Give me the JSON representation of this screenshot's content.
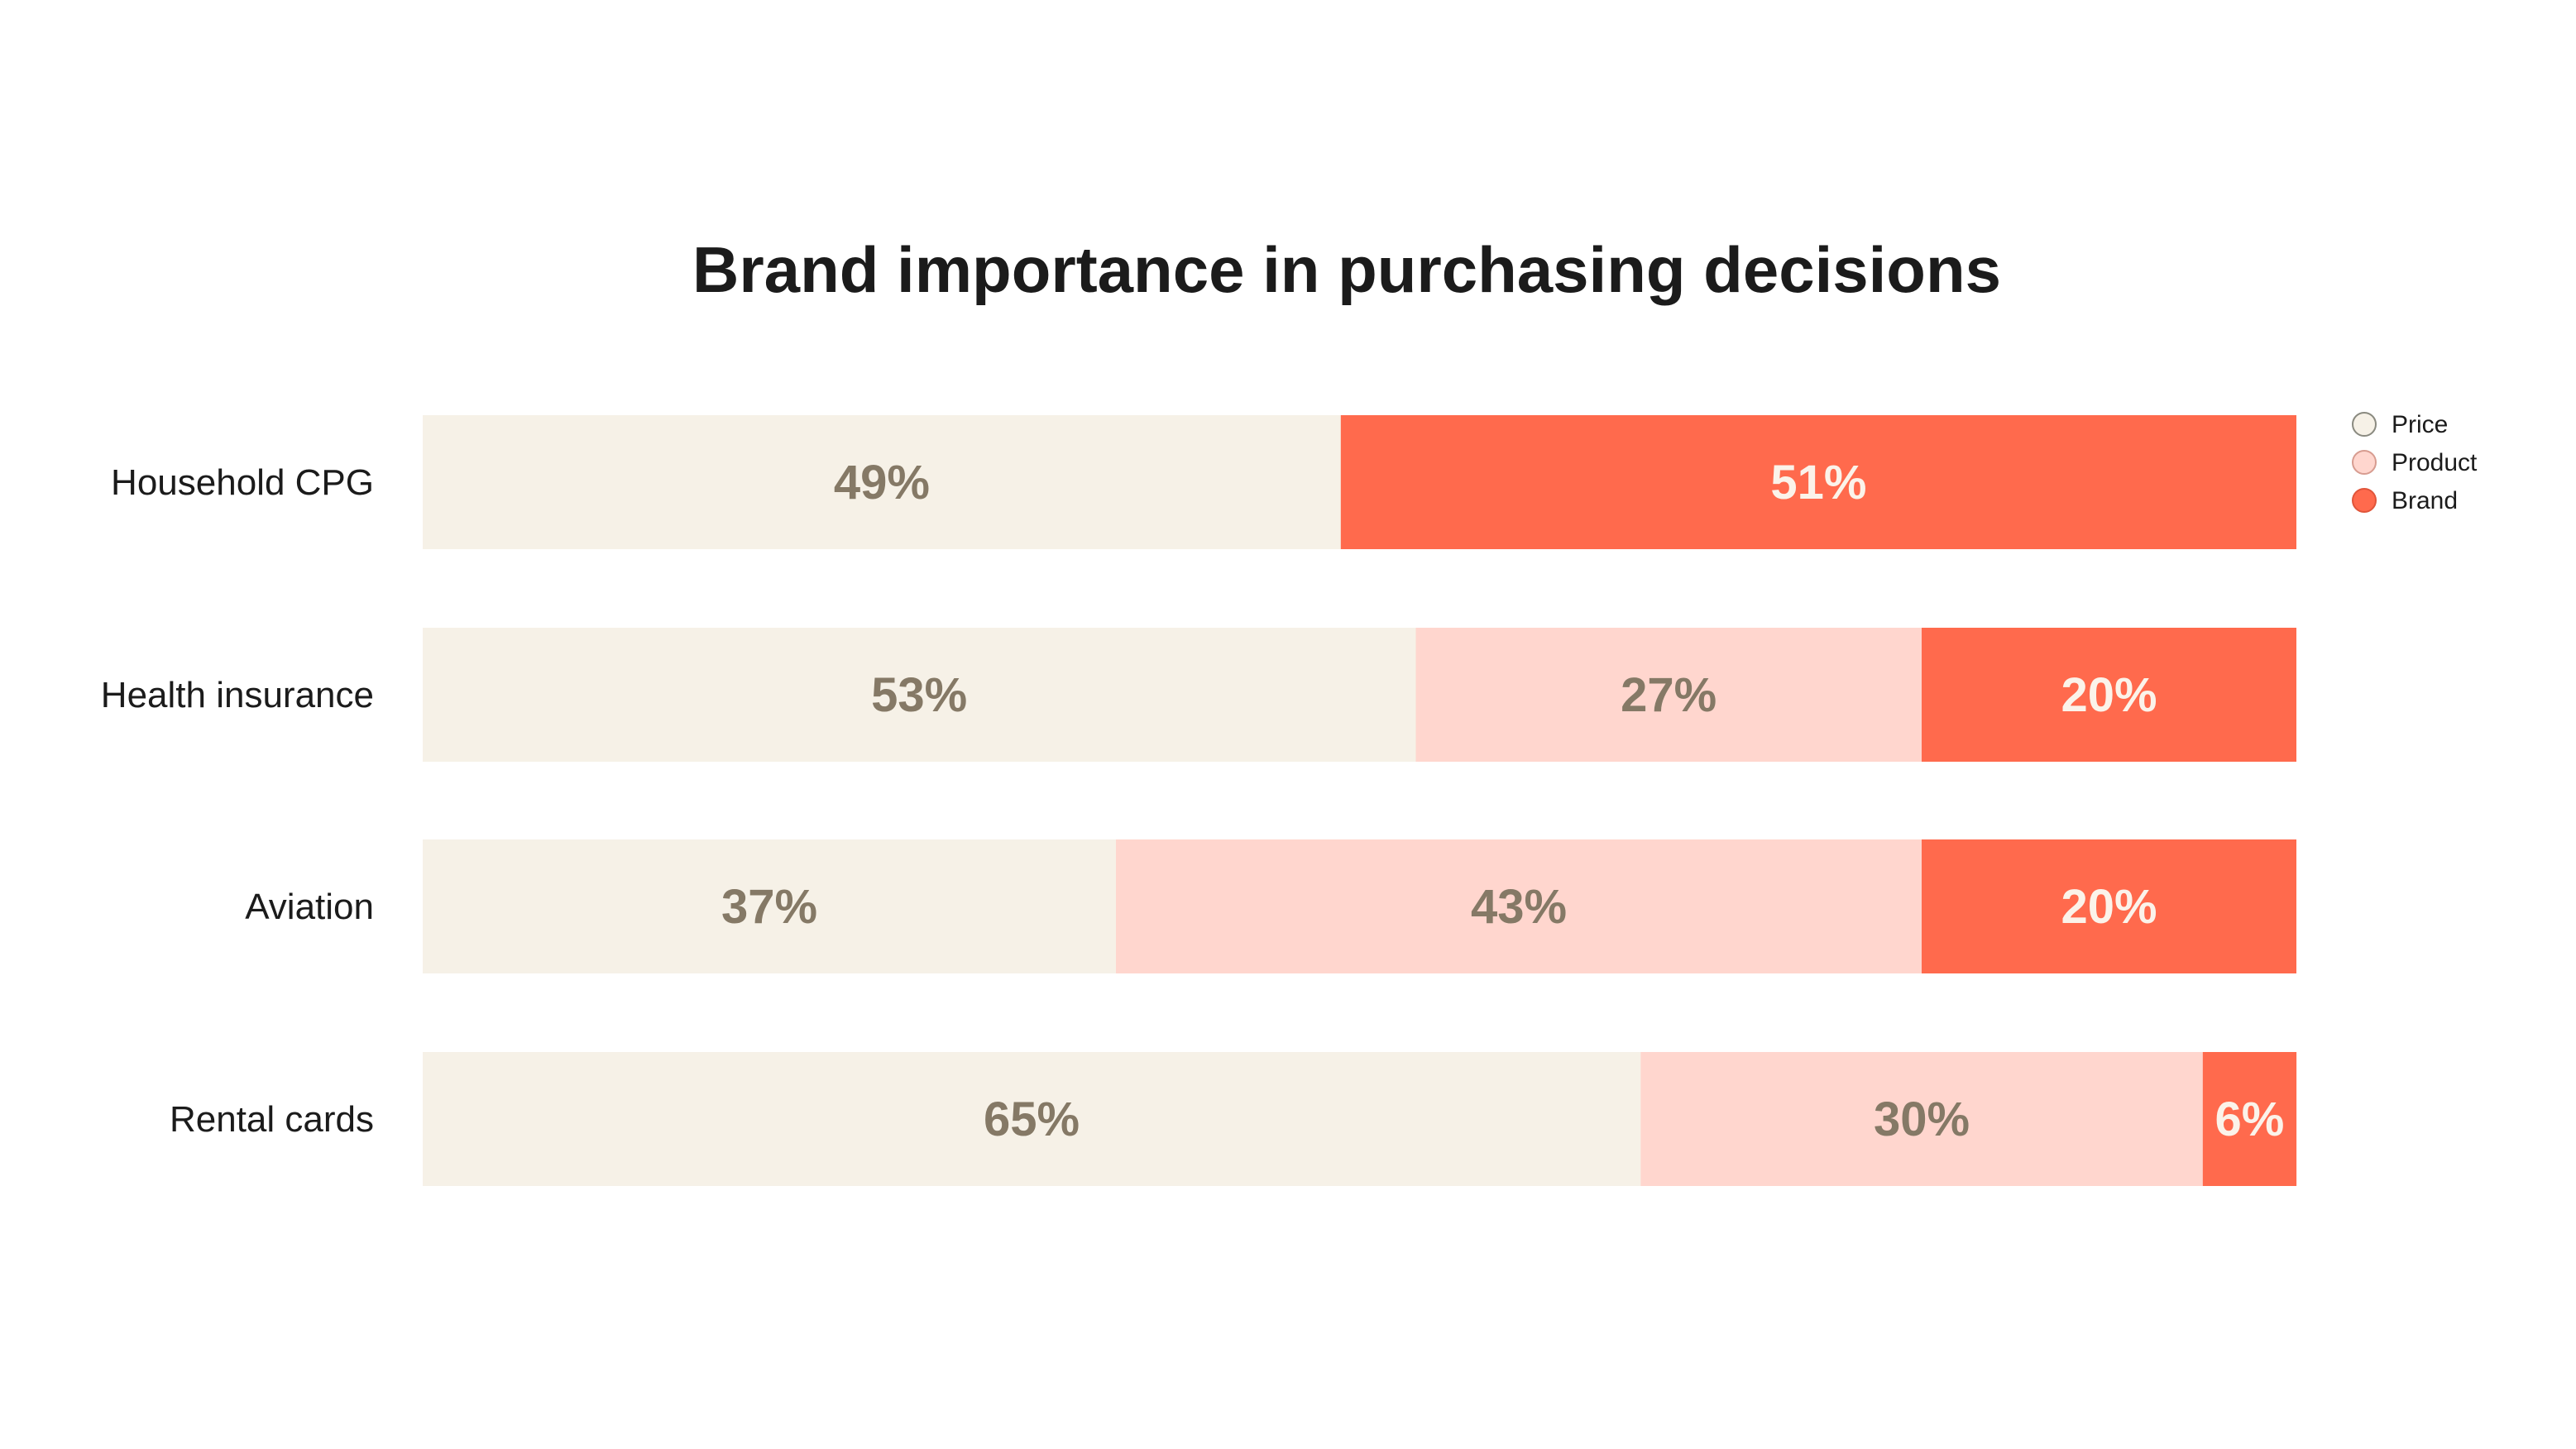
{
  "chart_data": {
    "type": "bar",
    "orientation": "horizontal",
    "stacked": true,
    "title": "Brand importance in purchasing decisions",
    "xlabel": "",
    "ylabel": "",
    "xlim": [
      0,
      100
    ],
    "grid": false,
    "legend_position": "top-right",
    "categories": [
      "Household CPG",
      "Health insurance",
      "Aviation",
      "Rental cards"
    ],
    "series": [
      {
        "name": "Price",
        "color": "#f6f1e7",
        "label_color": "#857966",
        "values": [
          49,
          53,
          37,
          65
        ],
        "labels": [
          "49%",
          "53%",
          "37%",
          "65%"
        ]
      },
      {
        "name": "Product",
        "color": "#ffd6ce",
        "label_color": "#857966",
        "values": [
          0,
          27,
          43,
          30
        ],
        "labels": [
          "",
          "27%",
          "43%",
          "30%"
        ]
      },
      {
        "name": "Brand",
        "color": "#ff6a4d",
        "label_color": "#fbf3ea",
        "values": [
          51,
          20,
          20,
          6
        ],
        "labels": [
          "51%",
          "20%",
          "20%",
          "6%"
        ]
      }
    ]
  }
}
